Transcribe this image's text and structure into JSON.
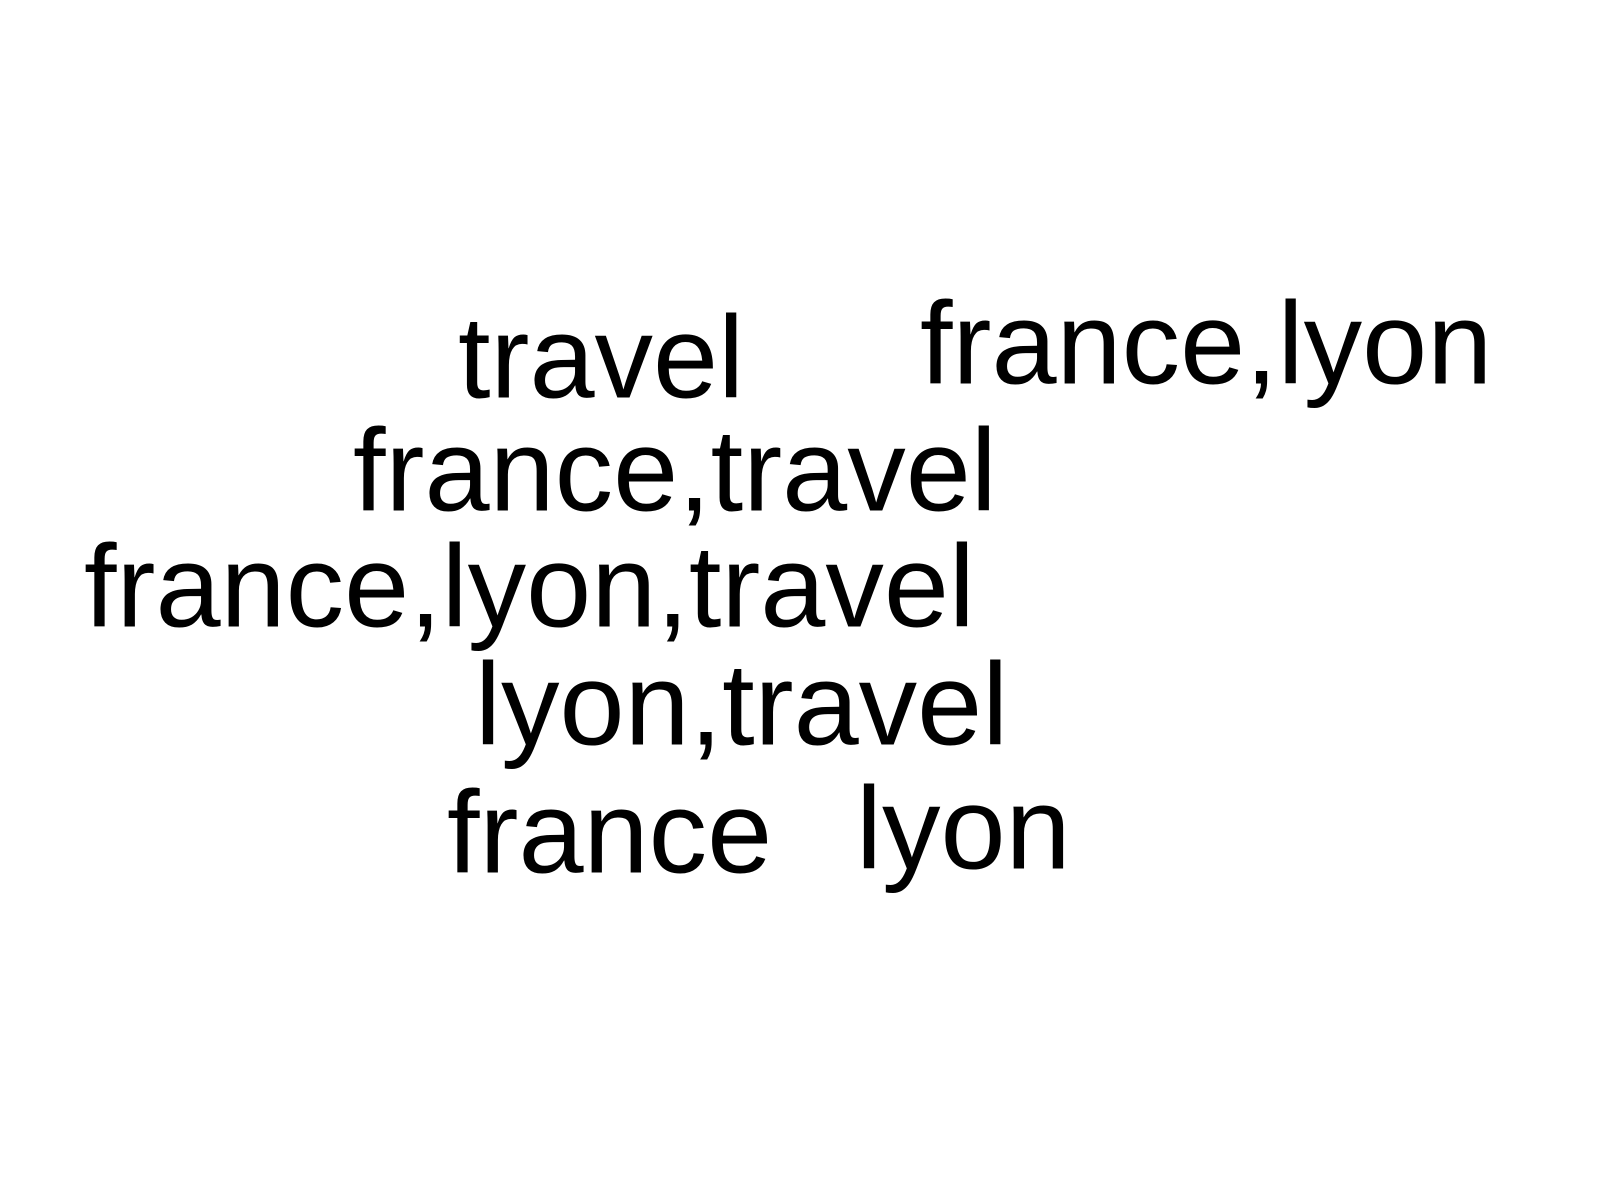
{
  "word_cloud": {
    "text_color": "#000000",
    "background": "#ffffff",
    "words": [
      "travel",
      "france,lyon",
      "france,travel",
      "france,lyon,travel",
      "lyon,travel",
      "france",
      "lyon"
    ]
  }
}
